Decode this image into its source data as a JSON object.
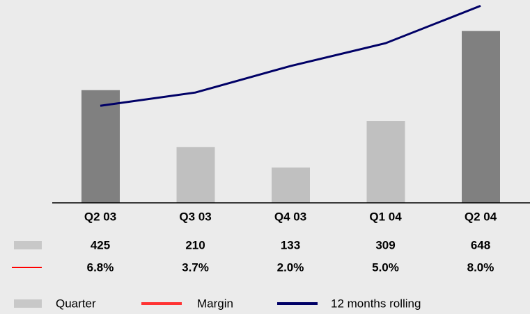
{
  "chart_data": {
    "type": "bar",
    "categories": [
      "Q2 03",
      "Q3 03",
      "Q4 03",
      "Q1 04",
      "Q2 04"
    ],
    "ylim": [
      0,
      765
    ],
    "series": [
      {
        "name": "Quarter",
        "values": [
          425,
          210,
          133,
          309,
          648
        ],
        "colors": [
          "#808080",
          "#c0c0c0",
          "#c0c0c0",
          "#c0c0c0",
          "#808080"
        ],
        "color": "#c8c8c8"
      },
      {
        "name": "Margin",
        "values": [
          6.8,
          3.7,
          2.0,
          5.0,
          8.0
        ],
        "value_labels": [
          "6.8%",
          "3.7%",
          "2.0%",
          "5.0%",
          "8.0%"
        ],
        "color": "#ff3333"
      },
      {
        "name": "12 months rolling",
        "values": [
          366,
          416,
          516,
          602,
          743
        ],
        "color": "#000066"
      }
    ]
  }
}
